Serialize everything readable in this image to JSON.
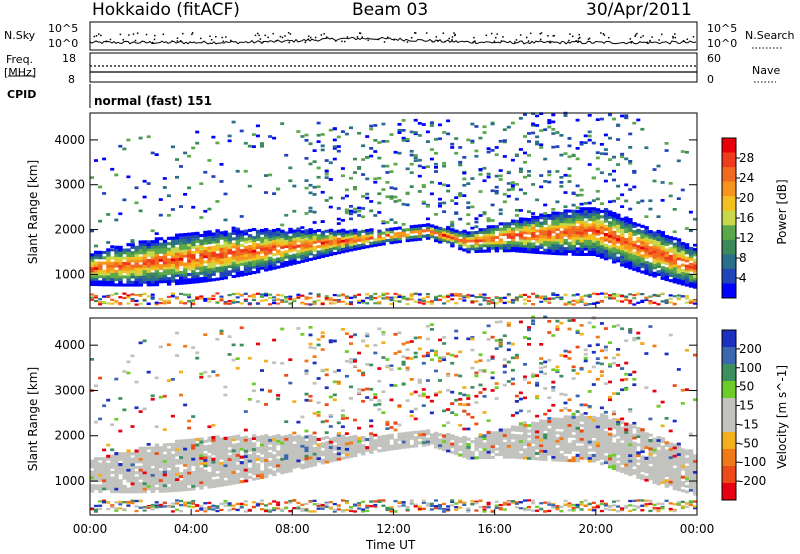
{
  "header": {
    "station": "Hokkaido (fitACF)",
    "beam": "Beam 03",
    "date": "30/Apr/2011"
  },
  "chart_data": [
    {
      "type": "line",
      "panel": "noise",
      "left_label": "N.Sky",
      "right_label": "N.Search",
      "left_ticks": [
        "10^5",
        "10^0"
      ],
      "right_ticks": [
        "10^5",
        "10^0"
      ]
    },
    {
      "type": "line",
      "panel": "frequency",
      "left_label": "Freq.",
      "left_unit": "[MHz]",
      "left_ticks": [
        18,
        8
      ],
      "right_label": "Nave",
      "right_ticks": [
        60,
        0
      ]
    },
    {
      "type": "table",
      "panel": "cpid",
      "label": "CPID",
      "value": "normal (fast) 151"
    },
    {
      "type": "heatmap",
      "panel": "power",
      "ylabel": "Slant Range [km]",
      "y_ticks": [
        1000,
        2000,
        3000,
        4000
      ],
      "ylim": [
        250,
        4600
      ],
      "colorbar_label": "Power [dB]",
      "colorbar_ticks": [
        4,
        8,
        12,
        16,
        20,
        24,
        28
      ],
      "colorbar_colors": [
        "#0000ff",
        "#2244bb",
        "#2a6e8a",
        "#3c8a5a",
        "#5aa84a",
        "#c8d84a",
        "#f4c020",
        "#f7941d",
        "#f26a20",
        "#ef3b1c",
        "#e8000b"
      ],
      "x_ticks": [
        "00:00",
        "04:00",
        "08:00",
        "12:00",
        "16:00",
        "20:00",
        "00:00"
      ],
      "xlabel": "Time UT"
    },
    {
      "type": "heatmap",
      "panel": "velocity",
      "ylabel": "Slant Range [km]",
      "y_ticks": [
        1000,
        2000,
        3000,
        4000
      ],
      "ylim": [
        250,
        4600
      ],
      "colorbar_label": "Velocity [m s^-1]",
      "colorbar_ticks": [
        200,
        100,
        50,
        15,
        -15,
        -50,
        -100,
        -200
      ],
      "colorbar_colors": [
        "#1c2fbf",
        "#3b66b0",
        "#3e8f5e",
        "#6dcc2a",
        "#c2c2be",
        "#c2c2be",
        "#f2b020",
        "#f07a18",
        "#ec4a18",
        "#e60010"
      ],
      "x_ticks": [
        "00:00",
        "04:00",
        "08:00",
        "12:00",
        "16:00",
        "20:00",
        "00:00"
      ],
      "xlabel": "Time UT"
    }
  ]
}
